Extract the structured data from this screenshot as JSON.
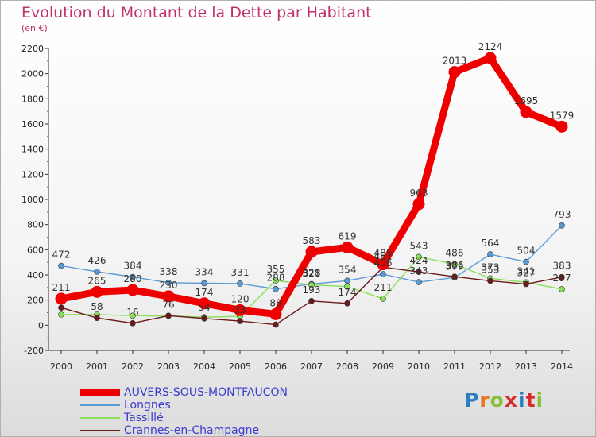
{
  "title": "Evolution du Montant de la Dette par Habitant",
  "subtitle": "(en €)",
  "logo_text": "Proxiti",
  "chart_data": {
    "type": "line",
    "title": "Evolution du Montant de la Dette par Habitant",
    "subtitle": "(en €)",
    "x": [
      "2000",
      "2001",
      "2002",
      "2003",
      "2004",
      "2005",
      "2006",
      "2007",
      "2008",
      "2009",
      "2010",
      "2011",
      "2012",
      "2013",
      "2014"
    ],
    "yticks": [
      "-200",
      "0",
      "200",
      "400",
      "600",
      "800",
      "1000",
      "1200",
      "1400",
      "1600",
      "1800",
      "2000",
      "2200"
    ],
    "ylim": [
      -200,
      2200
    ],
    "grid": false,
    "legend": "bottom-left",
    "series": [
      {
        "name": "AUVERS-SOUS-MONTFAUCON",
        "color": "#ee0000",
        "values": [
          211,
          265,
          280,
          230,
          174,
          120,
          88,
          583,
          619,
          485,
          963,
          2013,
          2124,
          1695,
          1579
        ]
      },
      {
        "name": "Longnes",
        "color": "#5a9bd5",
        "values": [
          472,
          426,
          384,
          338,
          334,
          331,
          288,
          328,
          354,
          406,
          343,
          379,
          564,
          504,
          793
        ]
      },
      {
        "name": "Tassillé",
        "color": "#8ae05a",
        "values": [
          85,
          85,
          76,
          74,
          64,
          71,
          355,
          321,
          307,
          211,
          543,
          486,
          373,
          341,
          287
        ]
      },
      {
        "name": "Crannes-en-Champagne",
        "color": "#6b1a1a",
        "values": [
          140,
          58,
          16,
          76,
          54,
          33,
          5,
          193,
          174,
          461,
          424,
          386,
          353,
          327,
          383
        ]
      }
    ],
    "labels": [
      {
        "text": "472",
        "x": "2000",
        "y": 472
      },
      {
        "text": "426",
        "x": "2001",
        "y": 426
      },
      {
        "text": "384",
        "x": "2002",
        "y": 384
      },
      {
        "text": "338",
        "x": "2003",
        "y": 338
      },
      {
        "text": "334",
        "x": "2004",
        "y": 334
      },
      {
        "text": "331",
        "x": "2005",
        "y": 331
      },
      {
        "text": "288",
        "x": "2006",
        "y": 288
      },
      {
        "text": "328",
        "x": "2007",
        "y": 328
      },
      {
        "text": "354",
        "x": "2008",
        "y": 354
      },
      {
        "text": "406",
        "x": "2009",
        "y": 406
      },
      {
        "text": "343",
        "x": "2010",
        "y": 343
      },
      {
        "text": "379",
        "x": "2011",
        "y": 379
      },
      {
        "text": "564",
        "x": "2012",
        "y": 564
      },
      {
        "text": "504",
        "x": "2013",
        "y": 504
      },
      {
        "text": "793",
        "x": "2014",
        "y": 793
      },
      {
        "text": "211",
        "x": "2000",
        "y": 211
      },
      {
        "text": "265",
        "x": "2001",
        "y": 265
      },
      {
        "text": "280",
        "x": "2002",
        "y": 280
      },
      {
        "text": "230",
        "x": "2003",
        "y": 230
      },
      {
        "text": "174",
        "x": "2004",
        "y": 174
      },
      {
        "text": "120",
        "x": "2005",
        "y": 120
      },
      {
        "text": "88",
        "x": "2006",
        "y": 88
      },
      {
        "text": "583",
        "x": "2007",
        "y": 583
      },
      {
        "text": "619",
        "x": "2008",
        "y": 619
      },
      {
        "text": "485",
        "x": "2009",
        "y": 485
      },
      {
        "text": "963",
        "x": "2010",
        "y": 963
      },
      {
        "text": "2013",
        "x": "2011",
        "y": 2013
      },
      {
        "text": "2124",
        "x": "2012",
        "y": 2124
      },
      {
        "text": "1695",
        "x": "2013",
        "y": 1695
      },
      {
        "text": "1579",
        "x": "2014",
        "y": 1579
      },
      {
        "text": "355",
        "x": "2006",
        "y": 355
      },
      {
        "text": "321",
        "x": "2007",
        "y": 321
      },
      {
        "text": "211",
        "x": "2009",
        "y": 211
      },
      {
        "text": "543",
        "x": "2010",
        "y": 543
      },
      {
        "text": "486",
        "x": "2011",
        "y": 486
      },
      {
        "text": "373",
        "x": "2012",
        "y": 373
      },
      {
        "text": "341",
        "x": "2013",
        "y": 341
      },
      {
        "text": "287",
        "x": "2014",
        "y": 287
      },
      {
        "text": "58",
        "x": "2001",
        "y": 58
      },
      {
        "text": "16",
        "x": "2002",
        "y": 16
      },
      {
        "text": "76",
        "x": "2003",
        "y": 76
      },
      {
        "text": "54",
        "x": "2004",
        "y": 54
      },
      {
        "text": "33",
        "x": "2005",
        "y": 33
      },
      {
        "text": "193",
        "x": "2007",
        "y": 193
      },
      {
        "text": "174",
        "x": "2008",
        "y": 174
      },
      {
        "text": "461",
        "x": "2009",
        "y": 461
      },
      {
        "text": "424",
        "x": "2010",
        "y": 424
      },
      {
        "text": "386",
        "x": "2011",
        "y": 386
      },
      {
        "text": "353",
        "x": "2012",
        "y": 353
      },
      {
        "text": "327",
        "x": "2013",
        "y": 327
      },
      {
        "text": "383",
        "x": "2014",
        "y": 383
      }
    ]
  }
}
